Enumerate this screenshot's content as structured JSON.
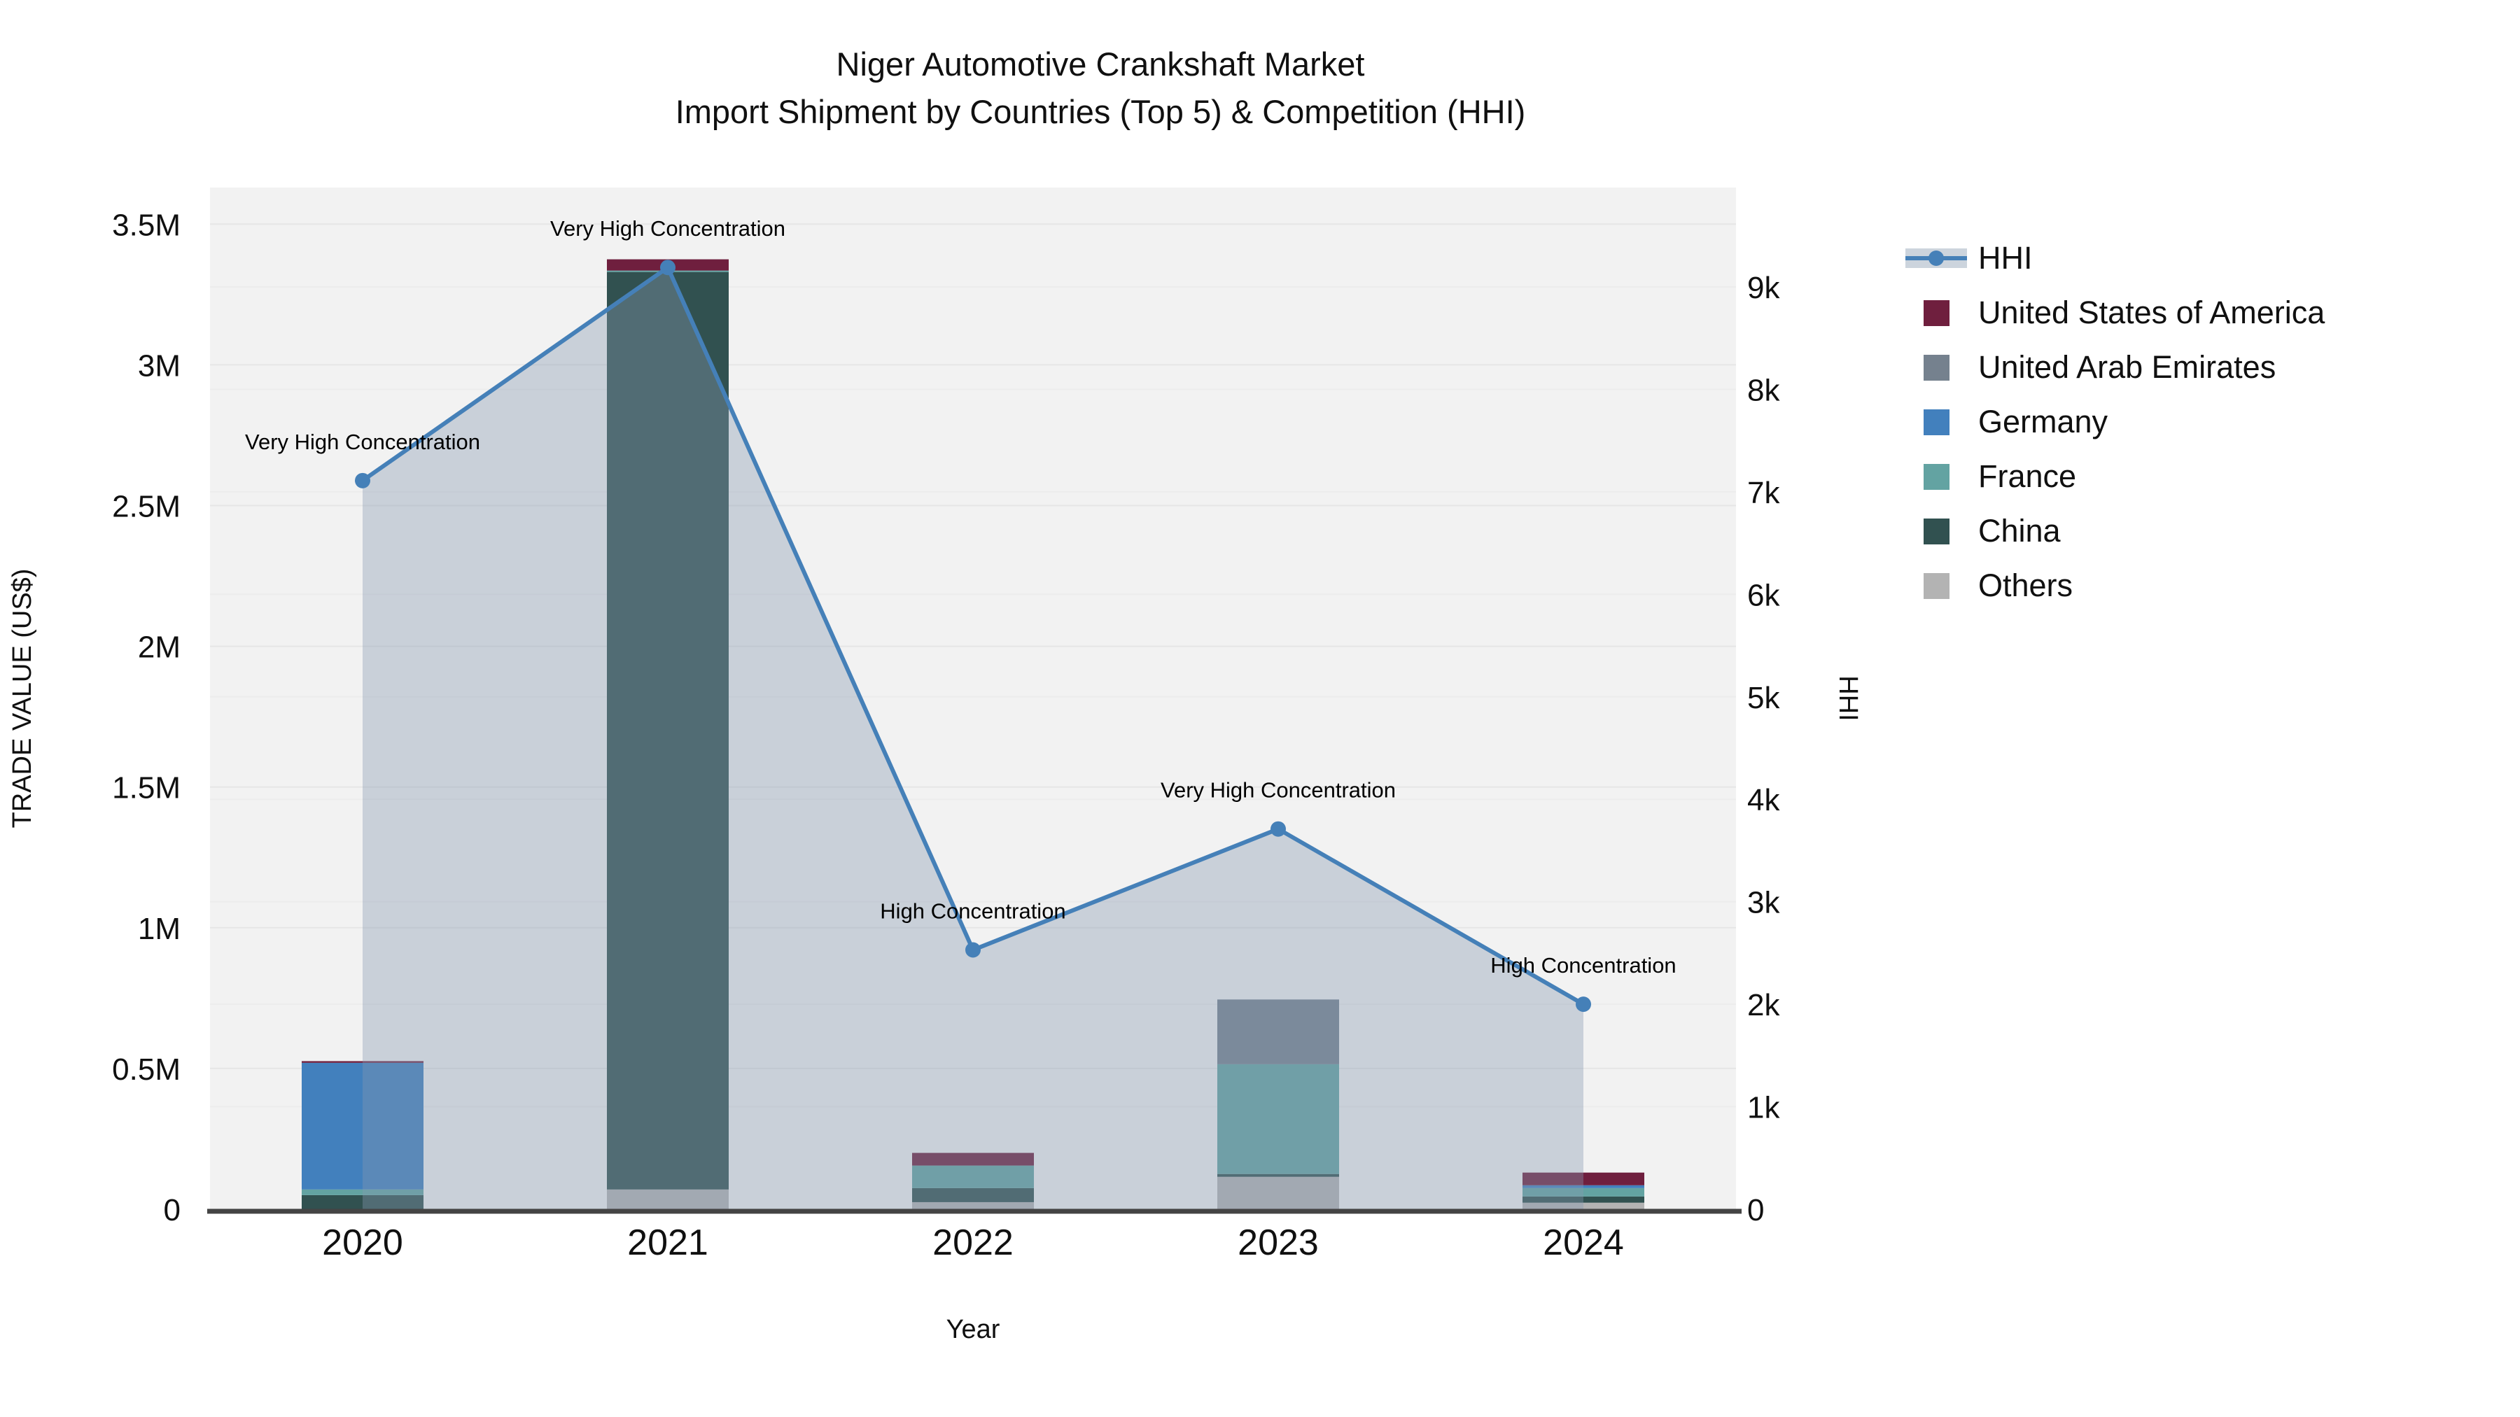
{
  "chart_data": {
    "type": "combo_stacked_bar_line",
    "title_line1": "Niger Automotive Crankshaft Market",
    "title_line2": "Import Shipment by Countries (Top 5) & Competition (HHI)",
    "xlabel": "Year",
    "categories": [
      "2020",
      "2021",
      "2022",
      "2023",
      "2024"
    ],
    "left_axis": {
      "title": "TRADE VALUE (US$)",
      "tick_labels": [
        "0",
        "0.5M",
        "1M",
        "1.5M",
        "2M",
        "2.5M",
        "3M",
        "3.5M"
      ],
      "tick_values": [
        0,
        500000,
        1000000,
        1500000,
        2000000,
        2500000,
        3000000,
        3500000
      ],
      "range": [
        0,
        3630000
      ]
    },
    "right_axis": {
      "title": "HHI",
      "tick_labels": [
        "0",
        "1k",
        "2k",
        "3k",
        "4k",
        "5k",
        "6k",
        "7k",
        "8k",
        "9k"
      ],
      "tick_values": [
        0,
        1000,
        2000,
        3000,
        4000,
        5000,
        6000,
        7000,
        8000,
        9000
      ],
      "range": [
        0,
        9970
      ]
    },
    "bar_series": [
      {
        "name": "United States of America",
        "color": "#6f1f3e",
        "values": [
          6000,
          40000,
          45000,
          0,
          45000
        ]
      },
      {
        "name": "United Arab Emirates",
        "color": "#75818e",
        "values": [
          0,
          0,
          0,
          230000,
          0
        ]
      },
      {
        "name": "Germany",
        "color": "#4280bd",
        "values": [
          450000,
          0,
          0,
          0,
          10000
        ]
      },
      {
        "name": "France",
        "color": "#63a3a2",
        "values": [
          20000,
          5000,
          80000,
          390000,
          30000
        ]
      },
      {
        "name": "China",
        "color": "#315150",
        "values": [
          50000,
          3260000,
          50000,
          10000,
          22000
        ]
      },
      {
        "name": "Others",
        "color": "#b3b3b3",
        "values": [
          0,
          70000,
          25000,
          115000,
          23000
        ]
      }
    ],
    "line_series": {
      "name": "HHI",
      "color": "#4580b8",
      "area_color": "rgba(134,152,176,0.38)",
      "values": [
        7110,
        9190,
        2530,
        3710,
        2000
      ]
    },
    "annotations": [
      "Very High Concentration",
      "Very High Concentration",
      "High Concentration",
      "Very High Concentration",
      "High Concentration"
    ],
    "colors": {
      "plot_background": "#f2f2f2",
      "grid_left": "#e6e6e6",
      "grid_right": "#ececec",
      "axis_line": "#444444",
      "text": "#101010"
    },
    "legend_position": "right",
    "grid": true
  }
}
